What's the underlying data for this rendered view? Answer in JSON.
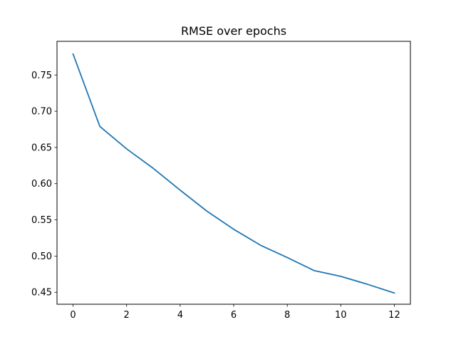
{
  "chart_data": {
    "type": "line",
    "title": "RMSE over epochs",
    "xlabel": "",
    "ylabel": "",
    "xlim": [
      -0.6,
      12.6
    ],
    "ylim": [
      0.4335,
      0.7965
    ],
    "x_ticks": [
      0,
      2,
      4,
      6,
      8,
      10,
      12
    ],
    "x_tick_labels": [
      "0",
      "2",
      "4",
      "6",
      "8",
      "10",
      "12"
    ],
    "y_ticks": [
      0.45,
      0.5,
      0.55,
      0.6,
      0.65,
      0.7,
      0.75
    ],
    "y_tick_labels": [
      "0.45",
      "0.50",
      "0.55",
      "0.60",
      "0.65",
      "0.70",
      "0.75"
    ],
    "grid": false,
    "legend": "none",
    "series": [
      {
        "color": "#1f77b4",
        "x": [
          0,
          1,
          2,
          3,
          4,
          5,
          6,
          7,
          8,
          9,
          10,
          11,
          12
        ],
        "y": [
          0.779,
          0.679,
          0.648,
          0.621,
          0.591,
          0.562,
          0.537,
          0.515,
          0.498,
          0.48,
          0.472,
          0.461,
          0.449
        ]
      }
    ]
  }
}
